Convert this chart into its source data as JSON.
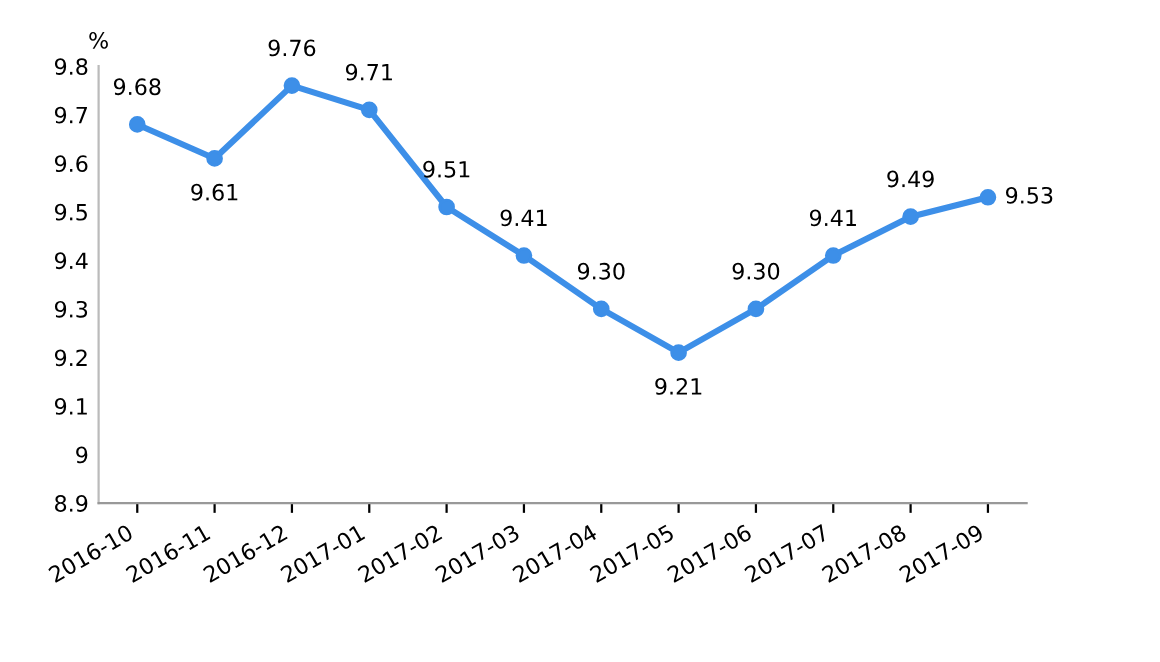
{
  "chart_data": {
    "type": "line",
    "ylabel": "%",
    "categories": [
      "2016-10",
      "2016-11",
      "2016-12",
      "2017-01",
      "2017-02",
      "2017-03",
      "2017-04",
      "2017-05",
      "2017-06",
      "2017-07",
      "2017-08",
      "2017-09"
    ],
    "series": [
      {
        "color": "#3d8fe8",
        "values": [
          9.68,
          9.61,
          9.76,
          9.71,
          9.51,
          9.41,
          9.3,
          9.21,
          9.3,
          9.41,
          9.49,
          9.53
        ],
        "value_labels": [
          "9.68",
          "9.61",
          "9.76",
          "9.71",
          "9.51",
          "9.41",
          "9.30",
          "9.21",
          "9.30",
          "9.41",
          "9.49",
          "9.53"
        ]
      }
    ],
    "ylim": [
      8.9,
      9.8
    ],
    "yticks": [
      8.9,
      9,
      9.1,
      9.2,
      9.3,
      9.4,
      9.5,
      9.6,
      9.7,
      9.8
    ],
    "marker": "circle",
    "line_style": "solid",
    "grid": false,
    "legend": false
  }
}
